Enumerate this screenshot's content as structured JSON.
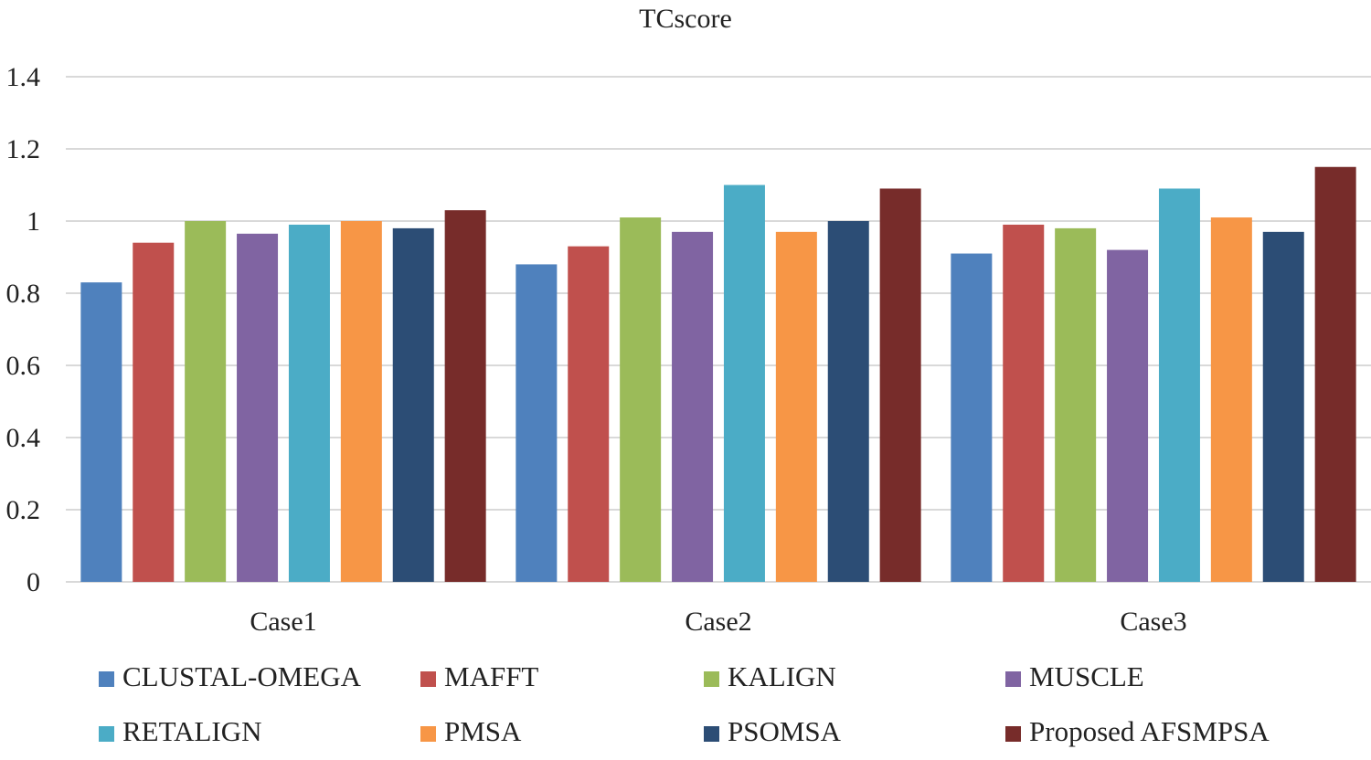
{
  "chart_data": {
    "type": "bar",
    "title": "TCscore",
    "xlabel": "",
    "ylabel": "",
    "ylim": [
      0,
      1.4
    ],
    "yticks": [
      "0",
      "0.2",
      "0.4",
      "0.6",
      "0.8",
      "1",
      "1.2",
      "1.4"
    ],
    "ytick_values": [
      0,
      0.2,
      0.4,
      0.6,
      0.8,
      1.0,
      1.2,
      1.4
    ],
    "grid": true,
    "legend_position": "bottom",
    "categories": [
      "Case1",
      "Case2",
      "Case3"
    ],
    "series": [
      {
        "name": "CLUSTAL-OMEGA",
        "color": "#4f81bd",
        "values": [
          0.83,
          0.88,
          0.91
        ]
      },
      {
        "name": "MAFFT",
        "color": "#c0504d",
        "values": [
          0.94,
          0.93,
          0.99
        ]
      },
      {
        "name": "KALIGN",
        "color": "#9bbb59",
        "values": [
          1.0,
          1.01,
          0.98
        ]
      },
      {
        "name": "MUSCLE",
        "color": "#8064a2",
        "values": [
          0.965,
          0.97,
          0.92
        ]
      },
      {
        "name": "RETALIGN",
        "color": "#4bacc6",
        "values": [
          0.99,
          1.1,
          1.09
        ]
      },
      {
        "name": "PMSA",
        "color": "#f79646",
        "values": [
          1.0,
          0.97,
          1.01
        ]
      },
      {
        "name": "PSOMSA",
        "color": "#2c4d75",
        "values": [
          0.98,
          1.0,
          0.97
        ]
      },
      {
        "name": "Proposed AFSMPSA",
        "color": "#772c2a",
        "values": [
          1.03,
          1.09,
          1.15
        ]
      }
    ]
  }
}
